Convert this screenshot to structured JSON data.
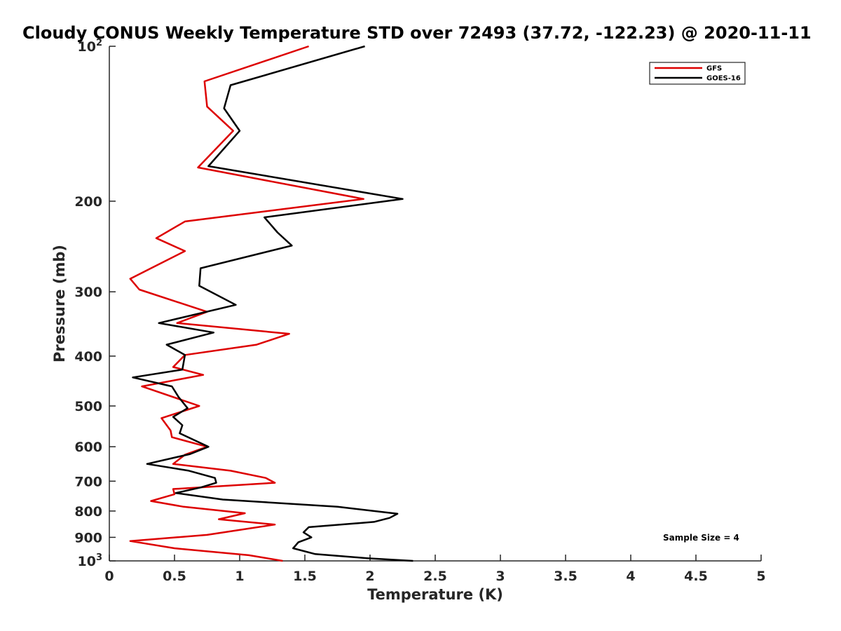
{
  "chart_data": {
    "type": "line",
    "title": "Cloudy CONUS Weekly Temperature STD over 72493 (37.72, -122.23) @ 2020-11-11",
    "xlabel": "Temperature (K)",
    "ylabel": "Pressure (mb)",
    "xlim": [
      0,
      5
    ],
    "ylim": [
      100,
      1000
    ],
    "y_scale": "log",
    "y_reversed": true,
    "x_ticks": [
      {
        "value": 0,
        "label": "0"
      },
      {
        "value": 0.5,
        "label": "0.5"
      },
      {
        "value": 1,
        "label": "1"
      },
      {
        "value": 1.5,
        "label": "1.5"
      },
      {
        "value": 2,
        "label": "2"
      },
      {
        "value": 2.5,
        "label": "2.5"
      },
      {
        "value": 3,
        "label": "3"
      },
      {
        "value": 3.5,
        "label": "3.5"
      },
      {
        "value": 4,
        "label": "4"
      },
      {
        "value": 4.5,
        "label": "4.5"
      },
      {
        "value": 5,
        "label": "5"
      }
    ],
    "y_ticks": [
      {
        "value": 100,
        "label": "10",
        "sup": "2"
      },
      {
        "value": 200,
        "label": "200"
      },
      {
        "value": 300,
        "label": "300"
      },
      {
        "value": 400,
        "label": "400"
      },
      {
        "value": 500,
        "label": "500"
      },
      {
        "value": 600,
        "label": "600"
      },
      {
        "value": 700,
        "label": "700"
      },
      {
        "value": 800,
        "label": "800"
      },
      {
        "value": 900,
        "label": "900"
      },
      {
        "value": 1000,
        "label": "10",
        "sup": "3"
      }
    ],
    "grid": false,
    "legend_position": "top-right",
    "annotation": "Sample Size = 4",
    "series": [
      {
        "name": "GFS",
        "color": "#dd0000",
        "points": [
          [
            1.53,
            100
          ],
          [
            0.73,
            117
          ],
          [
            0.75,
            131
          ],
          [
            0.95,
            146
          ],
          [
            0.68,
            172
          ],
          [
            1.95,
            198
          ],
          [
            0.58,
            219
          ],
          [
            0.36,
            236
          ],
          [
            0.58,
            250
          ],
          [
            0.16,
            283
          ],
          [
            0.23,
            297
          ],
          [
            0.75,
            328
          ],
          [
            0.52,
            345
          ],
          [
            1.38,
            362
          ],
          [
            1.13,
            380
          ],
          [
            0.58,
            398
          ],
          [
            0.49,
            420
          ],
          [
            0.72,
            435
          ],
          [
            0.25,
            458
          ],
          [
            0.69,
            500
          ],
          [
            0.4,
            528
          ],
          [
            0.47,
            558
          ],
          [
            0.48,
            575
          ],
          [
            0.75,
            600
          ],
          [
            0.58,
            622
          ],
          [
            0.49,
            648
          ],
          [
            0.93,
            668
          ],
          [
            1.2,
            690
          ],
          [
            1.27,
            705
          ],
          [
            0.49,
            725
          ],
          [
            0.5,
            742
          ],
          [
            0.32,
            765
          ],
          [
            0.57,
            785
          ],
          [
            1.04,
            808
          ],
          [
            0.84,
            830
          ],
          [
            1.27,
            850
          ],
          [
            0.75,
            890
          ],
          [
            0.16,
            915
          ],
          [
            0.5,
            945
          ],
          [
            1.07,
            975
          ],
          [
            1.33,
            1000
          ]
        ]
      },
      {
        "name": "GOES-16",
        "color": "#000000",
        "points": [
          [
            1.96,
            100
          ],
          [
            0.93,
            119
          ],
          [
            0.88,
            132
          ],
          [
            1.0,
            146
          ],
          [
            0.76,
            171
          ],
          [
            2.25,
            198
          ],
          [
            1.19,
            215
          ],
          [
            1.29,
            230
          ],
          [
            1.4,
            244
          ],
          [
            0.7,
            270
          ],
          [
            0.69,
            292
          ],
          [
            0.97,
            318
          ],
          [
            0.38,
            345
          ],
          [
            0.8,
            360
          ],
          [
            0.44,
            380
          ],
          [
            0.58,
            398
          ],
          [
            0.56,
            425
          ],
          [
            0.18,
            440
          ],
          [
            0.48,
            458
          ],
          [
            0.53,
            480
          ],
          [
            0.6,
            505
          ],
          [
            0.49,
            525
          ],
          [
            0.56,
            545
          ],
          [
            0.54,
            565
          ],
          [
            0.76,
            600
          ],
          [
            0.62,
            620
          ],
          [
            0.29,
            648
          ],
          [
            0.61,
            668
          ],
          [
            0.81,
            690
          ],
          [
            0.82,
            705
          ],
          [
            0.7,
            720
          ],
          [
            0.51,
            738
          ],
          [
            0.87,
            760
          ],
          [
            1.75,
            785
          ],
          [
            2.21,
            810
          ],
          [
            2.15,
            825
          ],
          [
            2.03,
            840
          ],
          [
            1.53,
            860
          ],
          [
            1.49,
            880
          ],
          [
            1.55,
            900
          ],
          [
            1.45,
            920
          ],
          [
            1.41,
            945
          ],
          [
            1.58,
            970
          ],
          [
            1.98,
            988
          ],
          [
            2.33,
            1000
          ]
        ]
      }
    ]
  }
}
